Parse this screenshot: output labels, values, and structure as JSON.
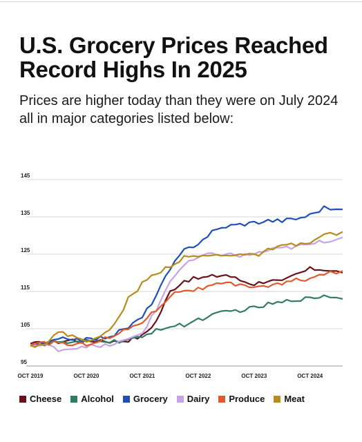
{
  "header": {
    "title": "U.S. Grocery Prices Reached Record Highs In 2025",
    "subtitle": "Prices are higher today than they were on July 2024 all in major categories listed below:"
  },
  "chart_data": {
    "type": "line",
    "title": "U.S. Grocery Prices Reached Record Highs In 2025",
    "subtitle": "Prices are higher today than they were on July 2024 all in major categories listed below:",
    "xlabel": "",
    "ylabel": "",
    "ylim": [
      95,
      145
    ],
    "yticks": [
      95,
      105,
      115,
      125,
      135,
      145
    ],
    "xlim": [
      "2019-10",
      "2025-05"
    ],
    "xtick_labels": [
      "OCT 2019",
      "OCT 2020",
      "OCT 2021",
      "OCT 2022",
      "OCT 2023",
      "OCT 2024"
    ],
    "xtick_values": [
      "2019-10",
      "2020-10",
      "2021-10",
      "2022-10",
      "2023-10",
      "2024-10"
    ],
    "grid": true,
    "legend_position": "bottom",
    "series": [
      {
        "name": "Cheese",
        "color": "#6b0f1a",
        "points": [
          [
            "2019-10",
            101
          ],
          [
            "2020-01",
            101
          ],
          [
            "2020-04",
            101.5
          ],
          [
            "2020-07",
            102
          ],
          [
            "2020-10",
            101.5
          ],
          [
            "2021-01",
            102
          ],
          [
            "2021-04",
            101.5
          ],
          [
            "2021-07",
            102
          ],
          [
            "2021-10",
            103
          ],
          [
            "2022-01",
            107
          ],
          [
            "2022-04",
            115
          ],
          [
            "2022-07",
            118
          ],
          [
            "2022-10",
            118.5
          ],
          [
            "2023-01",
            119
          ],
          [
            "2023-04",
            119.5
          ],
          [
            "2023-07",
            118
          ],
          [
            "2023-10",
            117
          ],
          [
            "2024-01",
            118
          ],
          [
            "2024-04",
            117.5
          ],
          [
            "2024-07",
            119.5
          ],
          [
            "2024-10",
            121
          ],
          [
            "2025-01",
            121
          ],
          [
            "2025-05",
            120
          ]
        ]
      },
      {
        "name": "Alcohol",
        "color": "#2e7d62",
        "points": [
          [
            "2019-10",
            100.5
          ],
          [
            "2020-01",
            101
          ],
          [
            "2020-04",
            101.5
          ],
          [
            "2020-07",
            101
          ],
          [
            "2020-10",
            101.5
          ],
          [
            "2021-01",
            102
          ],
          [
            "2021-04",
            101.5
          ],
          [
            "2021-07",
            102
          ],
          [
            "2021-10",
            102.5
          ],
          [
            "2022-01",
            105
          ],
          [
            "2022-04",
            105.5
          ],
          [
            "2022-07",
            106
          ],
          [
            "2022-10",
            107.5
          ],
          [
            "2023-01",
            108.5
          ],
          [
            "2023-04",
            109.5
          ],
          [
            "2023-07",
            110
          ],
          [
            "2023-10",
            110.5
          ],
          [
            "2024-01",
            111.5
          ],
          [
            "2024-04",
            112
          ],
          [
            "2024-07",
            113
          ],
          [
            "2024-10",
            113
          ],
          [
            "2025-01",
            114
          ],
          [
            "2025-05",
            113
          ]
        ]
      },
      {
        "name": "Grocery",
        "color": "#1f4fb5",
        "points": [
          [
            "2019-10",
            100.5
          ],
          [
            "2020-01",
            101
          ],
          [
            "2020-04",
            102
          ],
          [
            "2020-07",
            102.5
          ],
          [
            "2020-10",
            102
          ],
          [
            "2021-01",
            102.5
          ],
          [
            "2021-04",
            103.5
          ],
          [
            "2021-07",
            105.5
          ],
          [
            "2021-10",
            108
          ],
          [
            "2022-01",
            114
          ],
          [
            "2022-04",
            121
          ],
          [
            "2022-07",
            126
          ],
          [
            "2022-10",
            128
          ],
          [
            "2023-01",
            131
          ],
          [
            "2023-04",
            132.5
          ],
          [
            "2023-07",
            133
          ],
          [
            "2023-10",
            133.5
          ],
          [
            "2024-01",
            134
          ],
          [
            "2024-04",
            134
          ],
          [
            "2024-07",
            134.5
          ],
          [
            "2024-10",
            135.5
          ],
          [
            "2025-01",
            137.5
          ],
          [
            "2025-05",
            137
          ]
        ]
      },
      {
        "name": "Dairy",
        "color": "#c6a2e6",
        "points": [
          [
            "2019-10",
            100.5
          ],
          [
            "2020-01",
            100.5
          ],
          [
            "2020-04",
            99.5
          ],
          [
            "2020-07",
            99.8
          ],
          [
            "2020-10",
            100.5
          ],
          [
            "2021-01",
            100
          ],
          [
            "2021-04",
            101
          ],
          [
            "2021-07",
            102
          ],
          [
            "2021-10",
            104
          ],
          [
            "2022-01",
            110
          ],
          [
            "2022-04",
            118
          ],
          [
            "2022-07",
            122
          ],
          [
            "2022-10",
            124
          ],
          [
            "2023-01",
            125
          ],
          [
            "2023-04",
            125
          ],
          [
            "2023-07",
            124.5
          ],
          [
            "2023-10",
            125
          ],
          [
            "2024-01",
            126
          ],
          [
            "2024-04",
            126.5
          ],
          [
            "2024-07",
            127
          ],
          [
            "2024-10",
            127.5
          ],
          [
            "2025-01",
            128.5
          ],
          [
            "2025-05",
            129.5
          ]
        ]
      },
      {
        "name": "Produce",
        "color": "#e05a2b",
        "points": [
          [
            "2019-10",
            100.5
          ],
          [
            "2020-01",
            101
          ],
          [
            "2020-04",
            101.5
          ],
          [
            "2020-07",
            100.5
          ],
          [
            "2020-10",
            101
          ],
          [
            "2021-01",
            102
          ],
          [
            "2021-04",
            103
          ],
          [
            "2021-07",
            105
          ],
          [
            "2021-10",
            107
          ],
          [
            "2022-01",
            110
          ],
          [
            "2022-04",
            114
          ],
          [
            "2022-07",
            115.5
          ],
          [
            "2022-10",
            115.5
          ],
          [
            "2023-01",
            116.5
          ],
          [
            "2023-04",
            117
          ],
          [
            "2023-07",
            116.5
          ],
          [
            "2023-10",
            116.5
          ],
          [
            "2024-01",
            116.5
          ],
          [
            "2024-04",
            117
          ],
          [
            "2024-07",
            118
          ],
          [
            "2024-10",
            118.5
          ],
          [
            "2025-01",
            119.5
          ],
          [
            "2025-05",
            120.5
          ]
        ]
      },
      {
        "name": "Meat",
        "color": "#b98a1c",
        "points": [
          [
            "2019-10",
            100.5
          ],
          [
            "2020-01",
            101
          ],
          [
            "2020-04",
            104
          ],
          [
            "2020-07",
            103
          ],
          [
            "2020-10",
            102
          ],
          [
            "2021-01",
            102.5
          ],
          [
            "2021-04",
            106
          ],
          [
            "2021-07",
            113
          ],
          [
            "2021-10",
            117
          ],
          [
            "2022-01",
            120
          ],
          [
            "2022-04",
            122
          ],
          [
            "2022-07",
            124
          ],
          [
            "2022-10",
            124.5
          ],
          [
            "2023-01",
            124.5
          ],
          [
            "2023-04",
            125
          ],
          [
            "2023-07",
            125
          ],
          [
            "2023-10",
            124.5
          ],
          [
            "2024-01",
            126
          ],
          [
            "2024-04",
            127
          ],
          [
            "2024-07",
            127.5
          ],
          [
            "2024-10",
            128
          ],
          [
            "2025-01",
            130
          ],
          [
            "2025-05",
            131
          ]
        ]
      }
    ]
  }
}
